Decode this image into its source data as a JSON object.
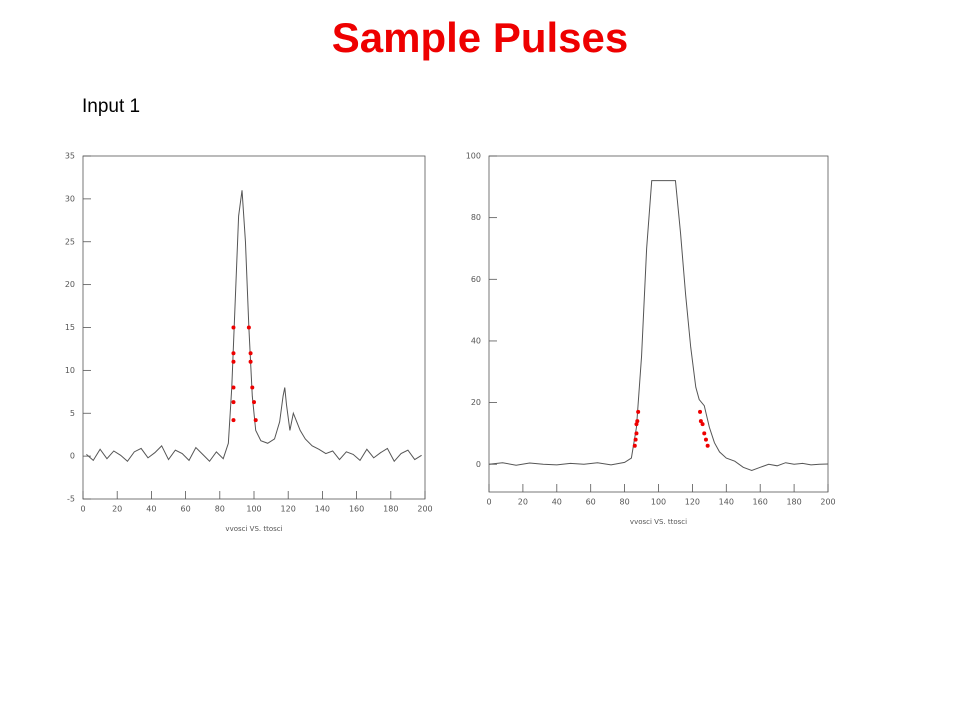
{
  "title": "Sample Pulses",
  "subtitle": "Input 1",
  "chart_data": [
    {
      "type": "line",
      "xlabel": "vvosci VS. ttosci",
      "xlim": [
        0,
        200
      ],
      "ylim": [
        -5,
        35
      ],
      "xticks": [
        0,
        20,
        40,
        60,
        80,
        100,
        120,
        140,
        160,
        180,
        200
      ],
      "yticks": [
        -5,
        0,
        5,
        10,
        15,
        20,
        25,
        30,
        35
      ],
      "series": [
        {
          "type": "line",
          "color": "#555555",
          "x": [
            2,
            6,
            10,
            14,
            18,
            22,
            26,
            30,
            34,
            38,
            42,
            46,
            50,
            54,
            58,
            62,
            66,
            70,
            74,
            78,
            82,
            85,
            87,
            89,
            91,
            93,
            95,
            97,
            99,
            101,
            104,
            108,
            112,
            115,
            117,
            118,
            119,
            121,
            123,
            125,
            127,
            130,
            134,
            138,
            142,
            146,
            150,
            154,
            158,
            162,
            166,
            170,
            174,
            178,
            182,
            186,
            190,
            194,
            198
          ],
          "values": [
            0.2,
            -0.5,
            0.8,
            -0.3,
            0.6,
            0.1,
            -0.6,
            0.5,
            0.9,
            -0.2,
            0.4,
            1.2,
            -0.4,
            0.7,
            0.3,
            -0.5,
            1.0,
            0.2,
            -0.6,
            0.5,
            -0.3,
            1.5,
            8,
            18,
            28,
            31,
            25,
            15,
            7,
            3,
            1.8,
            1.5,
            2,
            4,
            7,
            8,
            6,
            3,
            5,
            4,
            3,
            2,
            1.2,
            0.8,
            0.3,
            0.6,
            -0.4,
            0.5,
            0.2,
            -0.5,
            0.8,
            -0.2,
            0.4,
            0.9,
            -0.6,
            0.3,
            0.7,
            -0.4,
            0.1
          ]
        },
        {
          "type": "scatter",
          "color": "#ee0000",
          "x": [
            88,
            88,
            88,
            88,
            88,
            88,
            97,
            98,
            98,
            99,
            100,
            101
          ],
          "values": [
            15,
            12,
            11,
            8,
            6.3,
            4.2,
            15,
            12,
            11,
            8,
            6.3,
            4.2
          ]
        }
      ]
    },
    {
      "type": "line",
      "xlabel": "vvosci VS. ttosci",
      "xlim": [
        0,
        200
      ],
      "ylim": [
        -9,
        100
      ],
      "xticks": [
        0,
        20,
        40,
        60,
        80,
        100,
        120,
        140,
        160,
        180,
        200
      ],
      "yticks": [
        0,
        20,
        40,
        60,
        80,
        100
      ],
      "series": [
        {
          "type": "line",
          "color": "#555555",
          "x": [
            0,
            8,
            16,
            24,
            32,
            40,
            48,
            56,
            64,
            72,
            80,
            84,
            87,
            90,
            93,
            96,
            100,
            105,
            110,
            113,
            116,
            119,
            122,
            124,
            127,
            130,
            133,
            136,
            140,
            145,
            150,
            155,
            160,
            165,
            170,
            175,
            180,
            185,
            190,
            195,
            200
          ],
          "values": [
            0,
            0.5,
            -0.3,
            0.4,
            0,
            -0.2,
            0.3,
            0,
            0.5,
            -0.2,
            0.6,
            2,
            12,
            35,
            70,
            92,
            92,
            92,
            92,
            75,
            55,
            38,
            25,
            21,
            19,
            12,
            7,
            4,
            2,
            1,
            -1,
            -2,
            -1,
            0,
            -0.5,
            0.5,
            0,
            0.3,
            -0.2,
            0,
            0.1
          ]
        },
        {
          "type": "scatter",
          "color": "#ee0000",
          "x": [
            88,
            87.5,
            87,
            87,
            86.5,
            86,
            124.5,
            125,
            126,
            127,
            128,
            129
          ],
          "values": [
            17,
            14,
            13,
            10,
            8,
            6,
            17,
            14,
            13,
            10,
            8,
            6
          ]
        }
      ]
    }
  ]
}
